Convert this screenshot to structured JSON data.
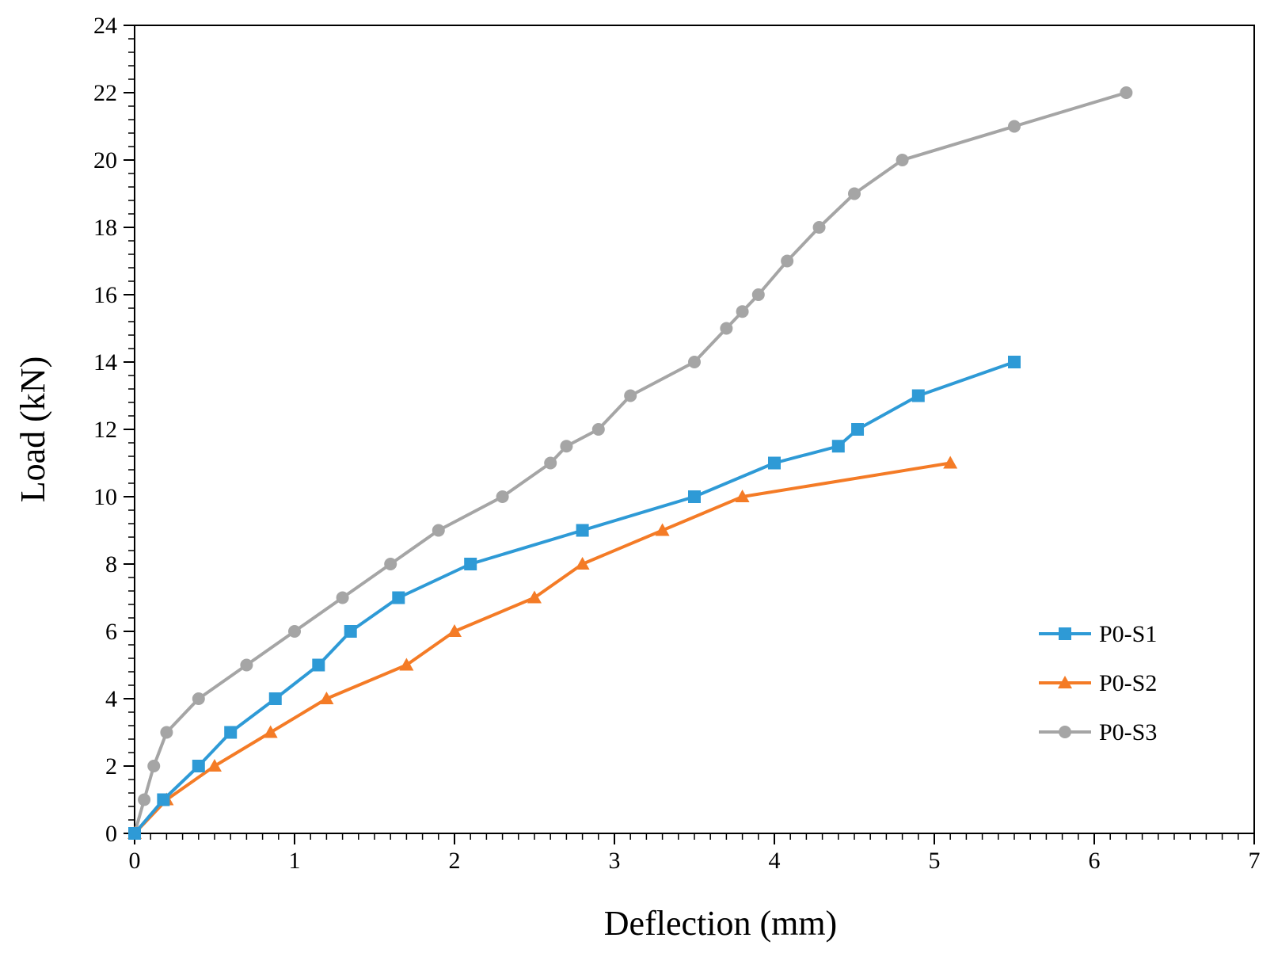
{
  "chart_data": {
    "type": "line",
    "title": "",
    "xlabel": "Deflection (mm)",
    "ylabel": "Load (kN)",
    "xlim": [
      0,
      7
    ],
    "ylim": [
      0,
      24
    ],
    "x_ticks": [
      0,
      1,
      2,
      3,
      4,
      5,
      6,
      7
    ],
    "y_ticks": [
      0,
      2,
      4,
      6,
      8,
      10,
      12,
      14,
      16,
      18,
      20,
      22,
      24
    ],
    "x_tick_labels": [
      "0",
      "1",
      "2",
      "3",
      "4",
      "5",
      "6",
      "7"
    ],
    "y_tick_labels": [
      "0",
      "2",
      "4",
      "6",
      "8",
      "10",
      "12",
      "14",
      "16",
      "18",
      "20",
      "22",
      "24"
    ],
    "minor_tick_step_x": 0.1,
    "minor_tick_step_y": 0.4,
    "grid": false,
    "legend_position": "bottom-right",
    "series": [
      {
        "name": "P0-S1",
        "color": "#2e9ad6",
        "marker": "square",
        "x": [
          0,
          0.18,
          0.4,
          0.6,
          0.88,
          1.15,
          1.35,
          1.65,
          2.1,
          2.8,
          3.5,
          4.0,
          4.4,
          4.52,
          4.9,
          5.5
        ],
        "y": [
          0,
          1,
          2,
          3,
          4,
          5,
          6,
          7,
          8,
          9,
          10,
          11,
          11.5,
          12,
          13,
          14
        ]
      },
      {
        "name": "P0-S2",
        "color": "#f47b26",
        "marker": "triangle",
        "x": [
          0,
          0.2,
          0.5,
          0.85,
          1.2,
          1.7,
          2.0,
          2.5,
          2.8,
          3.3,
          3.8,
          5.1
        ],
        "y": [
          0,
          1,
          2,
          3,
          4,
          5,
          6,
          7,
          8,
          9,
          10,
          11
        ]
      },
      {
        "name": "P0-S3",
        "color": "#a5a5a5",
        "marker": "circle",
        "x": [
          0,
          0.06,
          0.12,
          0.2,
          0.4,
          0.7,
          1.0,
          1.3,
          1.6,
          1.9,
          2.3,
          2.6,
          2.7,
          2.9,
          3.1,
          3.5,
          3.7,
          3.8,
          3.9,
          4.08,
          4.28,
          4.5,
          4.8,
          5.5,
          6.2
        ],
        "y": [
          0,
          1,
          2,
          3,
          4,
          5,
          6,
          7,
          8,
          9,
          10,
          11,
          11.5,
          12,
          13,
          14,
          15,
          15.5,
          16,
          17,
          18,
          19,
          20,
          21,
          22
        ]
      }
    ]
  }
}
